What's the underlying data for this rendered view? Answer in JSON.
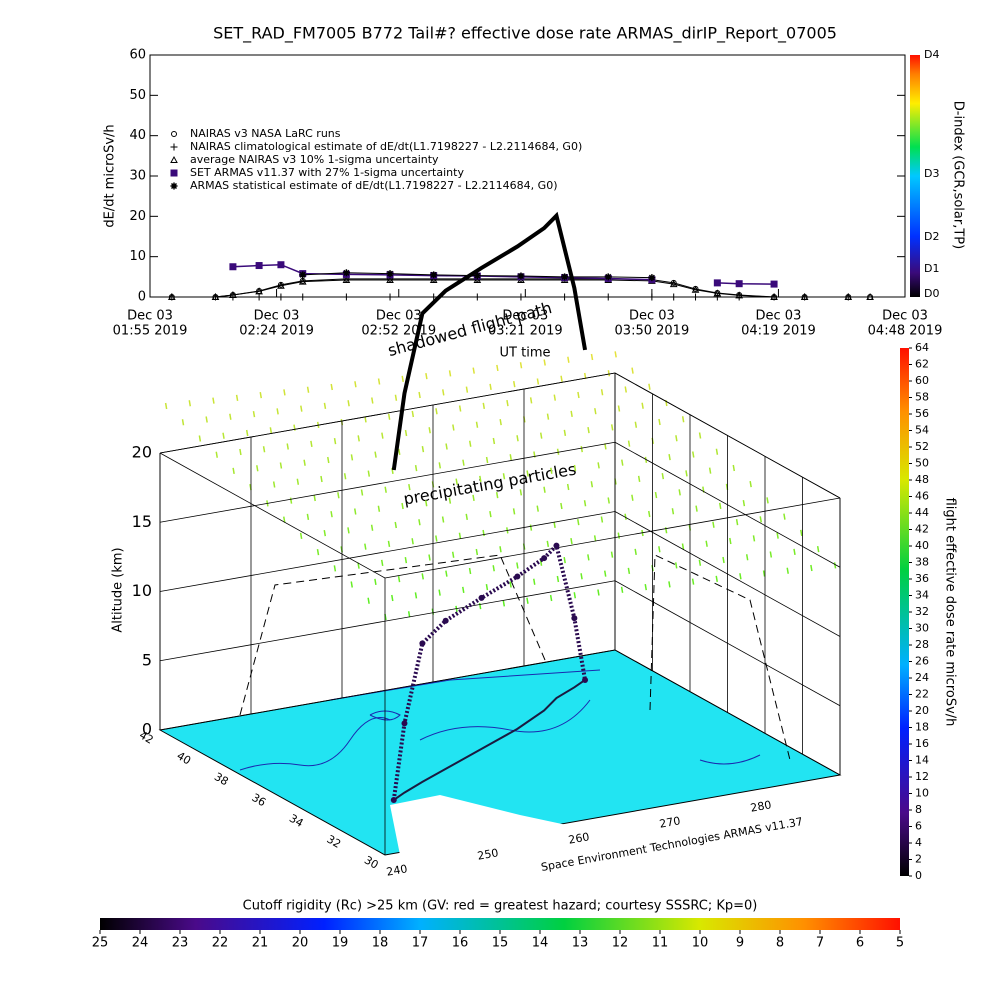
{
  "chart_data": [
    {
      "type": "line",
      "title": "SET_RAD_FM7005  B772 Tail#? effective dose rate ARMAS_dirIP_Report_07005",
      "y_label": "dE/dt microSv/h",
      "x_label": "UT time",
      "xlim": [
        "01:55",
        "04:48"
      ],
      "xticks": [
        {
          "value": "01:55",
          "label": [
            "Dec 03",
            "01:55 2019"
          ]
        },
        {
          "value": "02:24",
          "label": [
            "Dec 03",
            "02:24 2019"
          ]
        },
        {
          "value": "02:52",
          "label": [
            "Dec 03",
            "02:52 2019"
          ]
        },
        {
          "value": "03:21",
          "label": [
            "Dec 03",
            "03:21 2019"
          ]
        },
        {
          "value": "03:50",
          "label": [
            "Dec 03",
            "03:50 2019"
          ]
        },
        {
          "value": "04:19",
          "label": [
            "Dec 03",
            "04:19 2019"
          ]
        },
        {
          "value": "04:48",
          "label": [
            "Dec 03",
            "04:48 2019"
          ]
        }
      ],
      "ylim": [
        0,
        60
      ],
      "yticks": [
        0,
        10,
        20,
        30,
        40,
        50,
        60
      ],
      "legend": "upper left",
      "x": [
        "02:00",
        "02:10",
        "02:14",
        "02:20",
        "02:25",
        "02:30",
        "02:40",
        "02:50",
        "03:00",
        "03:10",
        "03:20",
        "03:30",
        "03:40",
        "03:50",
        "03:55",
        "04:00",
        "04:05",
        "04:10",
        "04:18",
        "04:25",
        "04:35",
        "04:40"
      ],
      "series": [
        {
          "name": "NAIRAS v3 NASA LaRC runs",
          "color": "#000000",
          "marker": "circle",
          "values": [
            0,
            0,
            0.5,
            1.5,
            3,
            4,
            4.5,
            4.5,
            4.5,
            4.5,
            4.5,
            4.5,
            4.5,
            4.3,
            3.5,
            2,
            1,
            0.5,
            0,
            0,
            0,
            0
          ]
        },
        {
          "name": "NAIRAS climatological estimate of dE/dt(L1.7198227 - L2.2114684, G0)",
          "color": "#000000",
          "marker": "plus",
          "values": [
            0,
            0,
            0,
            0,
            0,
            0,
            0,
            0,
            0,
            0,
            0,
            0,
            0,
            0,
            0,
            0,
            0,
            0,
            0,
            0,
            0,
            null
          ]
        },
        {
          "name": "average NAIRAS v3 10% 1-sigma uncertainty",
          "color": "#000000",
          "marker": "triangle",
          "values": [
            0,
            0,
            0.5,
            1.4,
            2.8,
            3.8,
            4.2,
            4.2,
            4.2,
            4.2,
            4.2,
            4.2,
            4.2,
            4,
            3.2,
            1.8,
            0.9,
            0.4,
            0,
            0,
            0,
            0
          ]
        },
        {
          "name": "SET ARMAS v11.37 with 27% 1-sigma uncertainty",
          "color": "#3a0a7a",
          "marker": "square",
          "values": [
            null,
            null,
            7.5,
            7.8,
            8,
            5.8,
            5.6,
            5.5,
            5.3,
            5.2,
            5,
            4.8,
            4.6,
            4.3,
            null,
            null,
            3.5,
            3.3,
            3.2,
            null,
            null,
            null
          ]
        },
        {
          "name": "ARMAS statistical estimate of dE/dt(L1.7198227 - L2.2114684, G0)",
          "color": "#000000",
          "marker": "asterisk",
          "values": [
            null,
            null,
            null,
            null,
            null,
            5.5,
            6,
            5.8,
            5.5,
            5.3,
            5.2,
            5,
            5,
            4.8,
            null,
            null,
            null,
            null,
            null,
            null,
            null,
            null
          ]
        }
      ],
      "colorbar": {
        "label": "D-index (GCR,solar,TP)",
        "ticks": [
          "D0",
          "D1",
          "D2",
          "D3",
          "D4"
        ]
      }
    },
    {
      "type": "scatter3d",
      "z_label": "Altitude (km)",
      "zlim": [
        0,
        20
      ],
      "zticks": [
        0,
        5,
        10,
        15,
        20
      ],
      "latlim": [
        30,
        42
      ],
      "latticks": [
        42,
        40,
        38,
        36,
        34,
        32,
        30
      ],
      "lonlim": [
        240,
        290
      ],
      "lonticks": [
        240,
        250,
        260,
        270,
        280
      ],
      "annotations": [
        "precipitating particles",
        "shadowed flight path"
      ],
      "credit": "Space Environment Technologies ARMAS v11.37",
      "track": {
        "lat": [
          33.9,
          34.3,
          34.85,
          35.5,
          36.5,
          37.5,
          38.5,
          39.25,
          39.8,
          40.2
        ],
        "lon": [
          249,
          251,
          254.1,
          258,
          264,
          270,
          275,
          277.9,
          281,
          283
        ],
        "alt": [
          0,
          5,
          10,
          10.7,
          10.9,
          11,
          11,
          11,
          5,
          0
        ]
      },
      "colorbar": {
        "label": "flight effective dose rate microSv/h",
        "lim": [
          0,
          64
        ],
        "ticks": [
          0,
          2,
          4,
          6,
          8,
          10,
          12,
          14,
          16,
          18,
          20,
          22,
          24,
          26,
          28,
          30,
          32,
          34,
          36,
          38,
          40,
          42,
          44,
          46,
          48,
          50,
          52,
          54,
          56,
          58,
          60,
          62,
          64
        ]
      },
      "cutoff_colorbar": {
        "title": "Cutoff rigidity (Rc) >25 km (GV: red = greatest hazard; courtesy SSSRC; Kp=0)",
        "ticks": [
          25,
          24,
          23,
          22,
          21,
          20,
          19,
          18,
          17,
          16,
          15,
          14,
          13,
          12,
          11,
          10,
          9,
          8,
          7,
          6,
          5
        ]
      }
    }
  ]
}
